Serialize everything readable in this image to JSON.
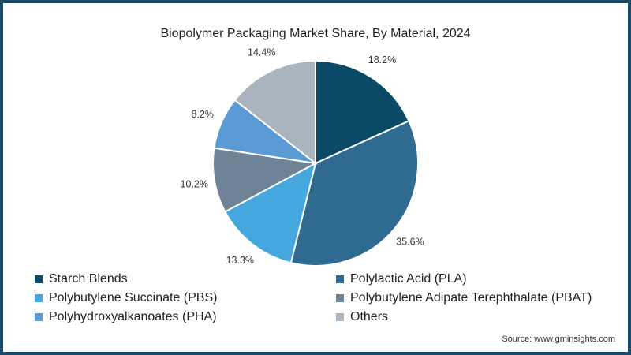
{
  "chart_data": {
    "type": "pie",
    "title": "Biopolymer Packaging Market Share, By Material, 2024",
    "categories": [
      "Starch Blends",
      "Polylactic Acid (PLA)",
      "Polybutylene Succinate (PBS)",
      "Polybutylene Adipate Terephthalate (PBAT)",
      "Polyhydroxyalkanoates (PHA)",
      "Others"
    ],
    "values": [
      18.2,
      35.6,
      13.3,
      10.2,
      8.2,
      14.4
    ],
    "labels": [
      "18.2%",
      "35.6%",
      "13.3%",
      "10.2%",
      "8.2%",
      "14.4%"
    ],
    "colors": [
      "#0b4a66",
      "#2f6b91",
      "#45a7de",
      "#6f8396",
      "#5b9bd5",
      "#a9b4be"
    ],
    "legend_position": "bottom",
    "source": "Source: www.gminsights.com"
  },
  "legend": [
    {
      "label": "Starch Blends",
      "color": "#0b4a66"
    },
    {
      "label": "Polylactic Acid (PLA)",
      "color": "#2f6b91"
    },
    {
      "label": "Polybutylene Succinate (PBS)",
      "color": "#45a7de"
    },
    {
      "label": "Polybutylene Adipate Terephthalate (PBAT)",
      "color": "#6f8396"
    },
    {
      "label": "Polyhydroxyalkanoates (PHA)",
      "color": "#5b9bd5"
    },
    {
      "label": "Others",
      "color": "#a9b4be"
    }
  ]
}
